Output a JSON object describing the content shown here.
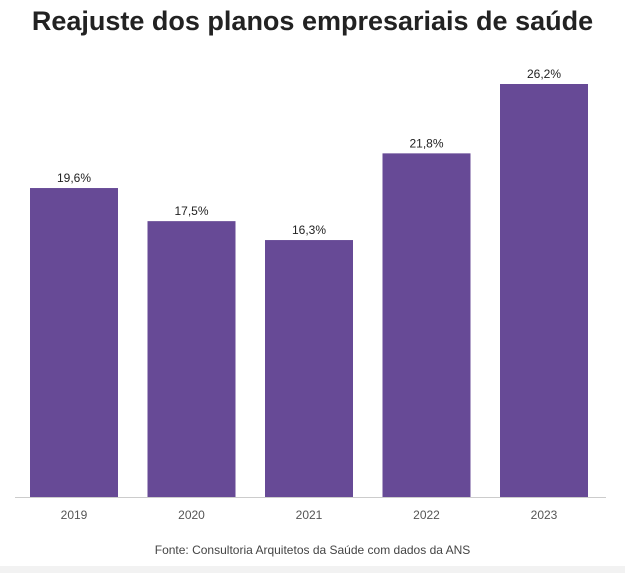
{
  "title": "Reajuste dos planos empresariais de saúde",
  "source": "Fonte: Consultoria Arquitetos da Saúde com dados da ANS",
  "chart_data": {
    "type": "bar",
    "title": "Reajuste dos planos empresariais de saúde",
    "categories": [
      "2019",
      "2020",
      "2021",
      "2022",
      "2023"
    ],
    "values": [
      19.6,
      17.5,
      16.3,
      21.8,
      26.2
    ],
    "data_labels": [
      "19,6%",
      "17,5%",
      "16,3%",
      "21,8%",
      "26,2%"
    ],
    "xlabel": "",
    "ylabel": "",
    "ylim": [
      0,
      26.2
    ],
    "grid": false,
    "legend": "none",
    "bar_color": "#674a96"
  }
}
